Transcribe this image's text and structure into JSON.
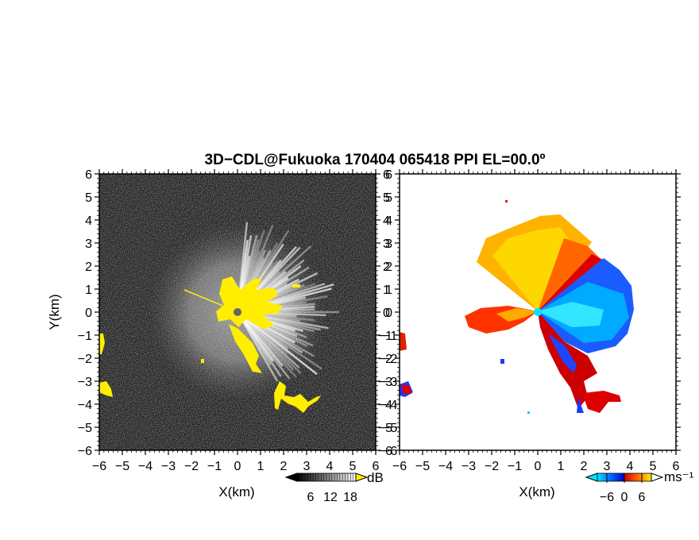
{
  "title": "3D−CDL@Fukuoka 170404 065418 PPI EL=00.0º",
  "chart_data": [
    {
      "type": "heatmap",
      "name": "signal-intensity-panel",
      "xlabel": "X(km)",
      "ylabel": "Y(km)",
      "xlim": [
        -6,
        6
      ],
      "ylim": [
        -6,
        6
      ],
      "x_ticks": [
        "−6",
        "−5",
        "−4",
        "−3",
        "−2",
        "−1",
        "0",
        "1",
        "2",
        "3",
        "4",
        "5",
        "6"
      ],
      "y_ticks": [
        "6",
        "5",
        "4",
        "3",
        "2",
        "1",
        "0",
        "−1",
        "−2",
        "−3",
        "−4",
        "−5",
        "−6"
      ],
      "background": "#1c1c1c",
      "colorbar": {
        "unit": "dB",
        "ticks": [
          "6",
          "12",
          "18"
        ],
        "range": [
          0,
          22
        ],
        "colors": [
          "#000000",
          "#ffffff"
        ],
        "overflow_color": "#ffee00"
      },
      "radar_center": [
        0,
        0
      ],
      "echo_sector_deg": [
        -60,
        85
      ],
      "echo_max_range_km": 4.5,
      "high_echo_color": "#ffee00"
    },
    {
      "type": "heatmap",
      "name": "doppler-velocity-panel",
      "xlabel": "X(km)",
      "ylabel": "",
      "xlim": [
        -6,
        6
      ],
      "ylim": [
        -6,
        6
      ],
      "x_ticks": [
        "−6",
        "−5",
        "−4",
        "−3",
        "−2",
        "−1",
        "0",
        "1",
        "2",
        "3",
        "4",
        "5",
        "6"
      ],
      "y_ticks": [
        "6",
        "5",
        "4",
        "3",
        "2",
        "1",
        "0",
        "−1",
        "−2",
        "−3",
        "−4",
        "−5",
        "−6"
      ],
      "background": "#ffffff",
      "colorbar": {
        "unit": "ms⁻¹",
        "ticks": [
          "−6",
          "0",
          "6"
        ],
        "range": [
          -9,
          9
        ],
        "colors": [
          "#00e5ff",
          "#0066ff",
          "#0000cc",
          "#cc0000",
          "#ff6600",
          "#ffee00"
        ]
      },
      "radar_center": [
        0,
        0
      ]
    }
  ]
}
